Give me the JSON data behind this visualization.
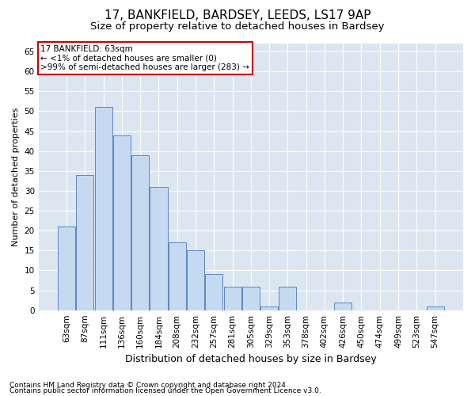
{
  "title1": "17, BANKFIELD, BARDSEY, LEEDS, LS17 9AP",
  "title2": "Size of property relative to detached houses in Bardsey",
  "xlabel": "Distribution of detached houses by size in Bardsey",
  "ylabel": "Number of detached properties",
  "categories": [
    "63sqm",
    "87sqm",
    "111sqm",
    "136sqm",
    "160sqm",
    "184sqm",
    "208sqm",
    "232sqm",
    "257sqm",
    "281sqm",
    "305sqm",
    "329sqm",
    "353sqm",
    "378sqm",
    "402sqm",
    "426sqm",
    "450sqm",
    "474sqm",
    "499sqm",
    "523sqm",
    "547sqm"
  ],
  "values": [
    21,
    34,
    51,
    44,
    39,
    31,
    17,
    15,
    9,
    6,
    6,
    1,
    6,
    0,
    0,
    2,
    0,
    0,
    0,
    0,
    1
  ],
  "bar_color": "#c5d9f1",
  "bar_edgecolor": "#5b87c5",
  "annotation_title": "17 BANKFIELD: 63sqm",
  "annotation_line1": "← <1% of detached houses are smaller (0)",
  "annotation_line2": ">99% of semi-detached houses are larger (283) →",
  "annotation_box_facecolor": "#ffffff",
  "annotation_box_edgecolor": "#cc0000",
  "ylim": [
    0,
    67
  ],
  "yticks": [
    0,
    5,
    10,
    15,
    20,
    25,
    30,
    35,
    40,
    45,
    50,
    55,
    60,
    65
  ],
  "footer1": "Contains HM Land Registry data © Crown copyright and database right 2024.",
  "footer2": "Contains public sector information licensed under the Open Government Licence v3.0.",
  "plot_bg_color": "#dce6f1",
  "grid_color": "#ffffff",
  "title1_fontsize": 11,
  "title2_fontsize": 9.5,
  "xlabel_fontsize": 9,
  "ylabel_fontsize": 8,
  "tick_fontsize": 7.5,
  "annotation_fontsize": 7.5,
  "footer_fontsize": 6.5
}
